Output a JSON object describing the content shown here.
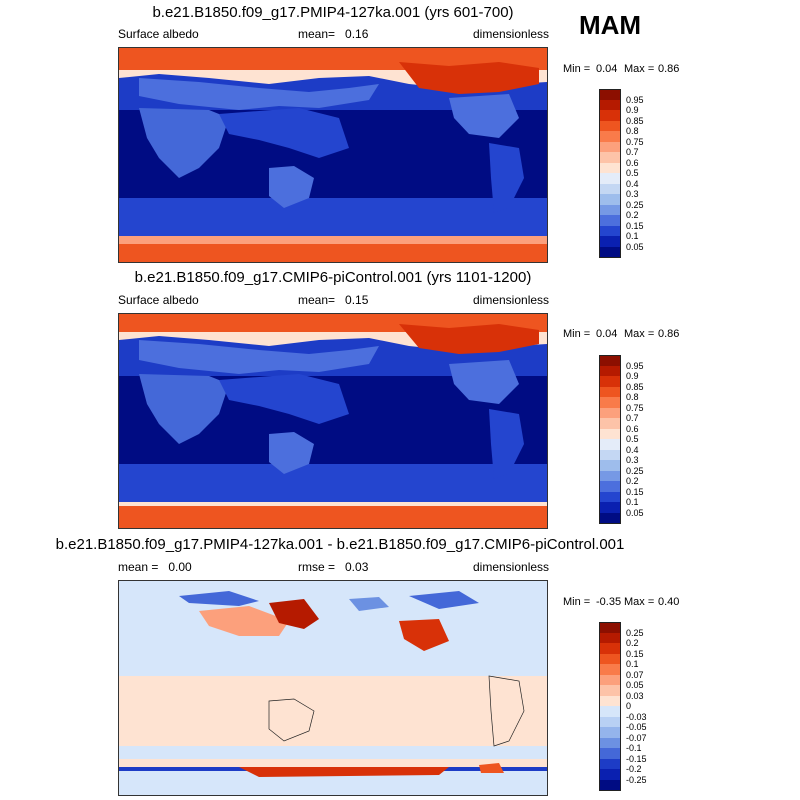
{
  "season": "MAM",
  "panels": [
    {
      "title": "b.e21.B1850.f09_g17.PMIP4-127ka.001 (yrs 601-700)",
      "left_label": "Surface albedo",
      "mid_label": "mean=   0.16",
      "right_label": "dimensionless",
      "min_label": "Min =",
      "min_value": "0.04",
      "max_label": "Max =",
      "max_value": "0.86",
      "colorbar": {
        "labels": [
          "0.95",
          "0.9",
          "0.85",
          "0.8",
          "0.75",
          "0.7",
          "0.6",
          "0.5",
          "0.4",
          "0.3",
          "0.25",
          "0.2",
          "0.15",
          "0.1",
          "0.05"
        ],
        "colors": [
          "#8c0f00",
          "#b51a00",
          "#d83108",
          "#ee5520",
          "#f97b4a",
          "#fca07c",
          "#fdc3a8",
          "#fee3d2",
          "#e4ecf9",
          "#c4d7f3",
          "#9ebdec",
          "#7699e5",
          "#4c6fdd",
          "#2445cf",
          "#0a20b0",
          "#000c83"
        ]
      }
    },
    {
      "title": "b.e21.B1850.f09_g17.CMIP6-piControl.001 (yrs 1101-1200)",
      "left_label": "Surface albedo",
      "mid_label": "mean=   0.15",
      "right_label": "dimensionless",
      "min_label": "Min =",
      "min_value": "0.04",
      "max_label": "Max =",
      "max_value": "0.86",
      "colorbar": {
        "labels": [
          "0.95",
          "0.9",
          "0.85",
          "0.8",
          "0.75",
          "0.7",
          "0.6",
          "0.5",
          "0.4",
          "0.3",
          "0.25",
          "0.2",
          "0.15",
          "0.1",
          "0.05"
        ],
        "colors": [
          "#8c0f00",
          "#b51a00",
          "#d83108",
          "#ee5520",
          "#f97b4a",
          "#fca07c",
          "#fdc3a8",
          "#fee3d2",
          "#e4ecf9",
          "#c4d7f3",
          "#9ebdec",
          "#7699e5",
          "#4c6fdd",
          "#2445cf",
          "#0a20b0",
          "#000c83"
        ]
      }
    },
    {
      "title": "b.e21.B1850.f09_g17.PMIP4-127ka.001 - b.e21.B1850.f09_g17.CMIP6-piControl.001",
      "left_label": "mean =   0.00",
      "mid_label": "rmse =   0.03",
      "right_label": "dimensionless",
      "min_label": "Min =",
      "min_value": "-0.35",
      "max_label": "Max =",
      "max_value": "0.40",
      "colorbar": {
        "labels": [
          "0.25",
          "0.2",
          "0.15",
          "0.1",
          "0.07",
          "0.05",
          "0.03",
          "0",
          "-0.03",
          "-0.05",
          "-0.07",
          "-0.1",
          "-0.15",
          "-0.2",
          "-0.25"
        ],
        "colors": [
          "#8c0f00",
          "#b51a00",
          "#d83108",
          "#ee5520",
          "#f97b4a",
          "#fca07c",
          "#fdc3a8",
          "#fee3d2",
          "#d6e6fa",
          "#b8d0f4",
          "#94b4ec",
          "#6c91e2",
          "#4468d8",
          "#1d3cc6",
          "#0a20b0",
          "#000c83"
        ]
      }
    }
  ]
}
